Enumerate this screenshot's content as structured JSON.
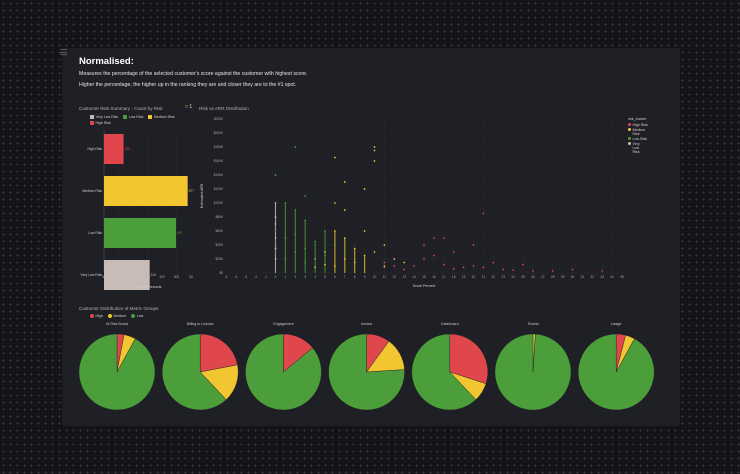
{
  "header": {
    "title": "Normalised:",
    "line1": "Measures the percentage of the selected customer's score against the customer with highest score.",
    "line2": "Higher the percentage, the higher up in the ranking they are and closer they are to the #1 spot."
  },
  "badge": "1",
  "colors": {
    "high": "#e0474c",
    "medium": "#f2c630",
    "low": "#4b9e3a",
    "very_low": "#c9bcb6"
  },
  "chart_data": [
    {
      "type": "bar",
      "orientation": "horizontal",
      "title": "Customer Risk Summary - Count by Risk",
      "categories": [
        "High Risk",
        "Medium Risk",
        "Low Risk",
        "Very Low Risk"
      ],
      "values": [
        135,
        577,
        497,
        315
      ],
      "data_labels": [
        "135",
        "577",
        "497",
        "315"
      ],
      "legend": [
        "Very Low Risk",
        "Low Risk",
        "Medium Risk",
        "High Risk"
      ],
      "xlabel": "Count of Records",
      "xticks": [
        "$0",
        "100",
        "200",
        "300",
        "400",
        "500",
        "$0"
      ],
      "xlim": [
        0,
        600
      ]
    },
    {
      "type": "scatter",
      "title": "Risk vs ARR Distribution",
      "xlabel": "Score Percent",
      "ylabel": "Estimated ARR",
      "xlim": [
        -5,
        35
      ],
      "ylim": [
        0,
        220
      ],
      "yticks": [
        "$0",
        "$20K",
        "$40K",
        "$60K",
        "$80K",
        "$100K",
        "$120K",
        "$140K",
        "$160K",
        "$180K",
        "$200K",
        "$220K"
      ],
      "legend_title": "risk_bucket",
      "legend": [
        "High Risk",
        "Medium Risk",
        "Low Risk",
        "Very Low Risk"
      ],
      "series": [
        {
          "name": "High Risk",
          "points": [
            [
              9,
              120
            ],
            [
              11,
              15
            ],
            [
              11,
              8
            ],
            [
              12,
              10
            ],
            [
              13,
              5
            ],
            [
              14,
              10
            ],
            [
              15,
              40
            ],
            [
              15,
              20
            ],
            [
              16,
              25
            ],
            [
              17,
              50
            ],
            [
              17,
              12
            ],
            [
              18,
              30
            ],
            [
              18,
              6
            ],
            [
              19,
              8
            ],
            [
              20,
              40
            ],
            [
              20,
              10
            ],
            [
              21,
              8
            ],
            [
              22,
              15
            ],
            [
              23,
              5
            ],
            [
              24,
              4
            ],
            [
              25,
              12
            ],
            [
              26,
              3
            ],
            [
              28,
              3
            ],
            [
              30,
              5
            ],
            [
              33,
              3
            ],
            [
              21,
              85
            ],
            [
              16,
              50
            ]
          ]
        },
        {
          "name": "Medium Risk",
          "points": [
            [
              4,
              20
            ],
            [
              4,
              8
            ],
            [
              5,
              30
            ],
            [
              5,
              12
            ],
            [
              6,
              165
            ],
            [
              6,
              100
            ],
            [
              6,
              60
            ],
            [
              6,
              40
            ],
            [
              6,
              10
            ],
            [
              7,
              130
            ],
            [
              7,
              90
            ],
            [
              7,
              50
            ],
            [
              7,
              20
            ],
            [
              8,
              35
            ],
            [
              8,
              15
            ],
            [
              9,
              120
            ],
            [
              9,
              60
            ],
            [
              9,
              25
            ],
            [
              10,
              180
            ],
            [
              10,
              175
            ],
            [
              10,
              160
            ],
            [
              10,
              30
            ],
            [
              11,
              40
            ],
            [
              11,
              10
            ],
            [
              12,
              20
            ],
            [
              13,
              15
            ]
          ]
        },
        {
          "name": "Low Risk",
          "points": [
            [
              0,
              140
            ],
            [
              0,
              60
            ],
            [
              0,
              45
            ],
            [
              0,
              30
            ],
            [
              1,
              100
            ],
            [
              1,
              50
            ],
            [
              1,
              20
            ],
            [
              2,
              90
            ],
            [
              2,
              55
            ],
            [
              2,
              30
            ],
            [
              3,
              75
            ],
            [
              3,
              35
            ],
            [
              3,
              15
            ],
            [
              4,
              45
            ],
            [
              4,
              20
            ],
            [
              5,
              60
            ],
            [
              5,
              25
            ],
            [
              6,
              40
            ],
            [
              7,
              30
            ],
            [
              2,
              180
            ],
            [
              3,
              110
            ]
          ]
        },
        {
          "name": "Very Low Risk",
          "points": [
            [
              0,
              100
            ],
            [
              0,
              80
            ],
            [
              0,
              70
            ],
            [
              0,
              50
            ],
            [
              0,
              35
            ],
            [
              0,
              20
            ]
          ]
        }
      ]
    },
    {
      "type": "pie",
      "title": "Customer Distribution of Metric Groups",
      "legend": [
        "High",
        "Medium",
        "Low"
      ],
      "pies": [
        {
          "name": "At Risk Board",
          "values": [
            3,
            5,
            92
          ]
        },
        {
          "name": "Billing to License",
          "values": [
            22,
            16,
            62
          ]
        },
        {
          "name": "Engagement",
          "values": [
            14,
            0,
            86
          ]
        },
        {
          "name": "Invoice",
          "values": [
            10,
            14,
            76
          ]
        },
        {
          "name": "Dashboard",
          "values": [
            30,
            8,
            62
          ]
        },
        {
          "name": "Tickets",
          "values": [
            0,
            1,
            99
          ]
        },
        {
          "name": "Usage",
          "values": [
            4,
            4,
            92
          ]
        }
      ]
    }
  ]
}
